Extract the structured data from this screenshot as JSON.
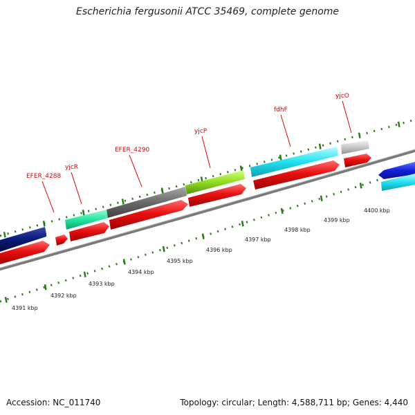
{
  "header": {
    "title": "Escherichia fergusonii ATCC 35469, complete genome"
  },
  "footer": {
    "accession": "Accession: NC_011740",
    "summary": "Topology: circular; Length: 4,588,711 bp; Genes: 4,440"
  },
  "gene_labels": [
    "EFER_4288",
    "yjcR",
    "EFER_4290",
    "yjcP",
    "fdhF",
    "yjcO"
  ],
  "scale_ticks": [
    "4391 kbp",
    "4392 kbp",
    "4393 kbp",
    "4394 kbp",
    "4395 kbp",
    "4396 kbp",
    "4397 kbp",
    "4398 kbp",
    "4399 kbp",
    "4400 kbp"
  ],
  "colors": {
    "cds_red": "#e81010",
    "navy": "#0a1a78",
    "blue": "#1020d8",
    "mint": "#20e8a0",
    "gray": "#6a6a6a",
    "lime": "#90dc20",
    "cyan": "#20e0f0",
    "light_gray": "#c8c8c8",
    "label_red": "#e00000",
    "tick_green": "#2a7a1a",
    "backbone": "#8a8a8a"
  }
}
